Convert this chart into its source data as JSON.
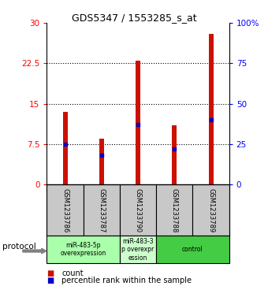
{
  "title": "GDS5347 / 1553285_s_at",
  "samples": [
    "GSM1233786",
    "GSM1233787",
    "GSM1233790",
    "GSM1233788",
    "GSM1233789"
  ],
  "counts": [
    13.5,
    8.5,
    23.0,
    11.0,
    28.0
  ],
  "percentiles": [
    25,
    18,
    37,
    22,
    40
  ],
  "ylim_left": [
    0,
    30
  ],
  "ylim_right": [
    0,
    100
  ],
  "yticks_left": [
    0,
    7.5,
    15,
    22.5,
    30
  ],
  "yticks_right": [
    0,
    25,
    50,
    75,
    100
  ],
  "ytick_labels_left": [
    "0",
    "7.5",
    "15",
    "22.5",
    "30"
  ],
  "ytick_labels_right": [
    "0",
    "25",
    "50",
    "75",
    "100%"
  ],
  "hlines": [
    7.5,
    15,
    22.5
  ],
  "bar_color": "#cc1100",
  "marker_color": "#0000cc",
  "groups": [
    {
      "label": "miR-483-5p\noverexpression",
      "indices": [
        0,
        1
      ],
      "color": "#aaffaa"
    },
    {
      "label": "miR-483-3\np overexpr\nession",
      "indices": [
        2
      ],
      "color": "#ccffcc"
    },
    {
      "label": "control",
      "indices": [
        3,
        4
      ],
      "color": "#44cc44"
    }
  ],
  "protocol_label": "protocol",
  "legend_count_label": "count",
  "legend_percentile_label": "percentile rank within the sample",
  "background_color": "#ffffff",
  "plot_bg_color": "#ffffff",
  "sample_box_color": "#c8c8c8"
}
